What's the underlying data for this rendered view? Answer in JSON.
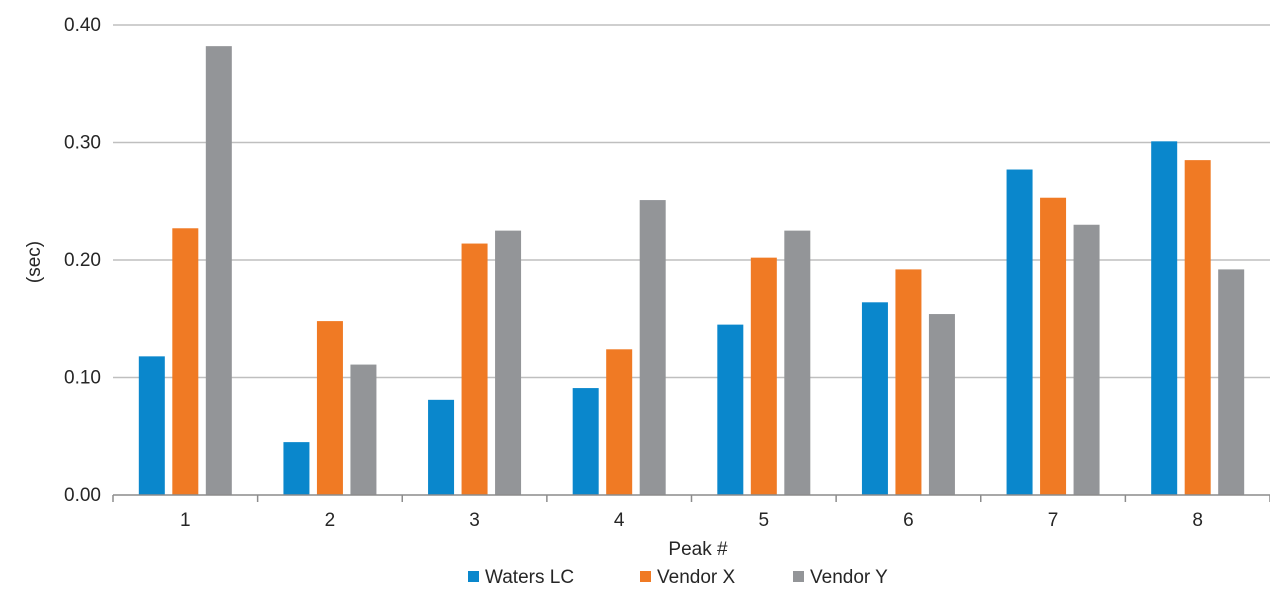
{
  "chart_data": {
    "type": "bar",
    "title": "",
    "xlabel": "Peak #",
    "ylabel": "(sec)",
    "categories": [
      "1",
      "2",
      "3",
      "4",
      "5",
      "6",
      "7",
      "8"
    ],
    "series": [
      {
        "name": "Waters LC",
        "color": "#0a87cc",
        "values": [
          0.118,
          0.045,
          0.081,
          0.091,
          0.145,
          0.164,
          0.277,
          0.301
        ]
      },
      {
        "name": "Vendor X",
        "color": "#f07a24",
        "values": [
          0.227,
          0.148,
          0.214,
          0.124,
          0.202,
          0.192,
          0.253,
          0.285
        ]
      },
      {
        "name": "Vendor Y",
        "color": "#939598",
        "values": [
          0.382,
          0.111,
          0.225,
          0.251,
          0.225,
          0.154,
          0.23,
          0.192
        ]
      }
    ],
    "ylim": [
      0,
      0.4
    ],
    "yticks": [
      "0.00",
      "0.10",
      "0.20",
      "0.30",
      "0.40"
    ],
    "grid": true,
    "legend_position": "bottom"
  }
}
